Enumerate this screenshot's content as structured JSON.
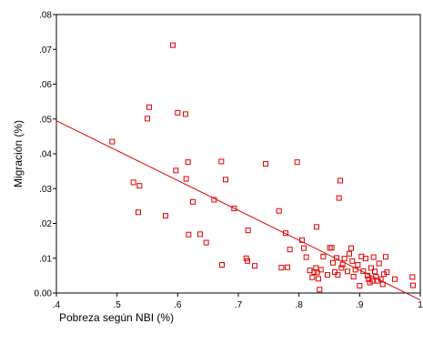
{
  "chart_data": {
    "type": "scatter",
    "title": "",
    "xlabel": "Pobreza según NBI (%)",
    "ylabel": "Migración (%)",
    "xlim": [
      0.4,
      1.0
    ],
    "ylim": [
      0.0,
      0.08
    ],
    "x_ticks": [
      ".4",
      ".5",
      ".6",
      ".7",
      ".8",
      ".9",
      "1"
    ],
    "y_ticks": [
      "0.00",
      ".01",
      ".02",
      ".03",
      ".04",
      ".05",
      ".06",
      ".07",
      ".08"
    ],
    "grid": false,
    "marker_color": "#e00000",
    "line_color": "#e00000",
    "fit_line": {
      "x": [
        0.4,
        1.0
      ],
      "y": [
        0.0495,
        -0.002
      ]
    },
    "points": [
      [
        0.492,
        0.0435
      ],
      [
        0.527,
        0.0318
      ],
      [
        0.535,
        0.0232
      ],
      [
        0.537,
        0.0308
      ],
      [
        0.55,
        0.0501
      ],
      [
        0.553,
        0.0534
      ],
      [
        0.58,
        0.0222
      ],
      [
        0.592,
        0.0712
      ],
      [
        0.597,
        0.0352
      ],
      [
        0.6,
        0.0518
      ],
      [
        0.613,
        0.0514
      ],
      [
        0.614,
        0.0328
      ],
      [
        0.617,
        0.0376
      ],
      [
        0.618,
        0.0168
      ],
      [
        0.625,
        0.0262
      ],
      [
        0.637,
        0.0169
      ],
      [
        0.647,
        0.0145
      ],
      [
        0.66,
        0.0268
      ],
      [
        0.672,
        0.0378
      ],
      [
        0.673,
        0.0081
      ],
      [
        0.679,
        0.0326
      ],
      [
        0.693,
        0.0243
      ],
      [
        0.713,
        0.01
      ],
      [
        0.715,
        0.0092
      ],
      [
        0.716,
        0.018
      ],
      [
        0.727,
        0.0078
      ],
      [
        0.745,
        0.0371
      ],
      [
        0.767,
        0.0236
      ],
      [
        0.771,
        0.0073
      ],
      [
        0.778,
        0.0172
      ],
      [
        0.781,
        0.0074
      ],
      [
        0.785,
        0.0125
      ],
      [
        0.797,
        0.0376
      ],
      [
        0.805,
        0.0152
      ],
      [
        0.808,
        0.0129
      ],
      [
        0.812,
        0.0103
      ],
      [
        0.818,
        0.0065
      ],
      [
        0.822,
        0.0045
      ],
      [
        0.825,
        0.006
      ],
      [
        0.828,
        0.0072
      ],
      [
        0.829,
        0.019
      ],
      [
        0.83,
        0.0059
      ],
      [
        0.832,
        0.0041
      ],
      [
        0.834,
        0.001
      ],
      [
        0.836,
        0.0067
      ],
      [
        0.84,
        0.0105
      ],
      [
        0.847,
        0.0052
      ],
      [
        0.851,
        0.013
      ],
      [
        0.854,
        0.013
      ],
      [
        0.856,
        0.0087
      ],
      [
        0.859,
        0.006
      ],
      [
        0.862,
        0.0101
      ],
      [
        0.864,
        0.0052
      ],
      [
        0.866,
        0.0273
      ],
      [
        0.868,
        0.0323
      ],
      [
        0.87,
        0.0072
      ],
      [
        0.872,
        0.0082
      ],
      [
        0.875,
        0.0099
      ],
      [
        0.88,
        0.0062
      ],
      [
        0.883,
        0.0113
      ],
      [
        0.886,
        0.0129
      ],
      [
        0.888,
        0.0092
      ],
      [
        0.89,
        0.0047
      ],
      [
        0.893,
        0.0067
      ],
      [
        0.897,
        0.0081
      ],
      [
        0.9,
        0.0021
      ],
      [
        0.903,
        0.0105
      ],
      [
        0.906,
        0.0063
      ],
      [
        0.91,
        0.0099
      ],
      [
        0.913,
        0.005
      ],
      [
        0.915,
        0.004
      ],
      [
        0.917,
        0.003
      ],
      [
        0.919,
        0.0072
      ],
      [
        0.921,
        0.0035
      ],
      [
        0.923,
        0.0103
      ],
      [
        0.925,
        0.0062
      ],
      [
        0.927,
        0.0047
      ],
      [
        0.93,
        0.0035
      ],
      [
        0.932,
        0.0085
      ],
      [
        0.935,
        0.004
      ],
      [
        0.938,
        0.0025
      ],
      [
        0.94,
        0.0054
      ],
      [
        0.943,
        0.0104
      ],
      [
        0.945,
        0.006
      ],
      [
        0.958,
        0.004
      ],
      [
        0.987,
        0.0046
      ],
      [
        0.988,
        0.0022
      ]
    ]
  }
}
